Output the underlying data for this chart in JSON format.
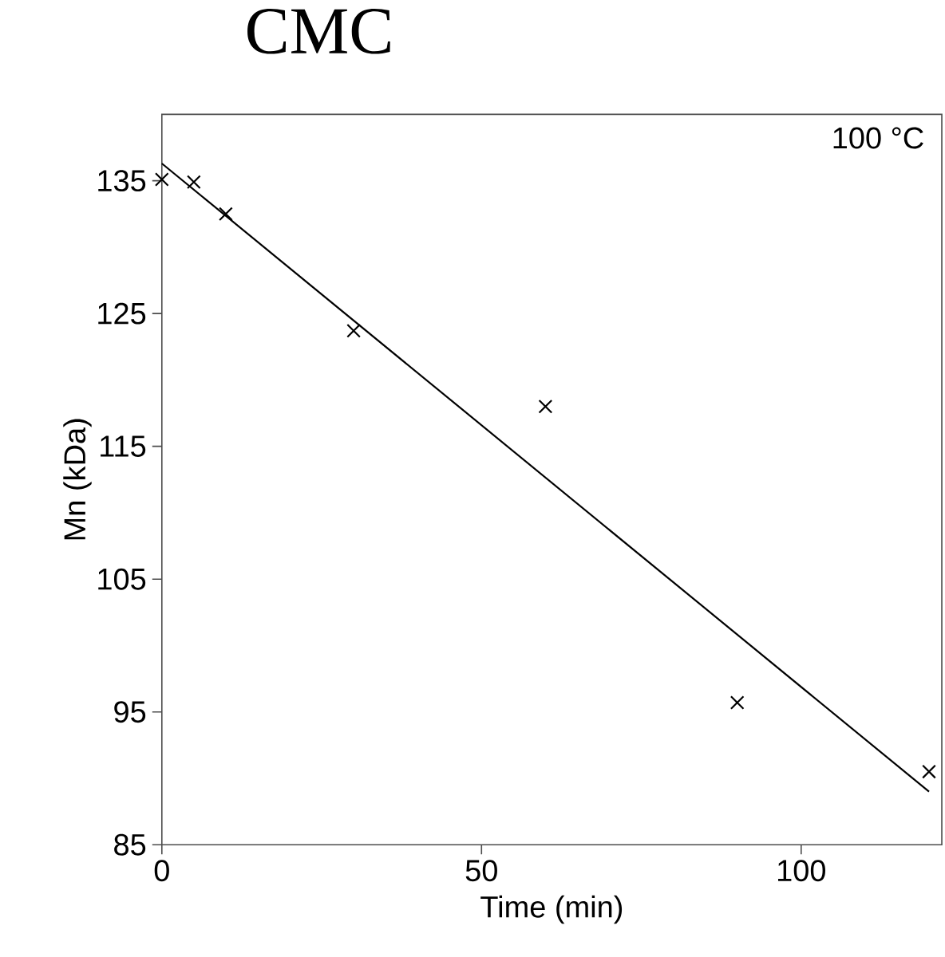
{
  "chart_data": {
    "type": "scatter",
    "title": "CMC",
    "xlabel": "Time (min)",
    "ylabel": "Mn (kDa)",
    "annotations": [
      "100 °C"
    ],
    "series": [
      {
        "color": "#000000",
        "x": [
          0,
          5,
          10,
          30,
          60,
          90,
          120
        ],
        "values": [
          135.1,
          134.9,
          132.5,
          123.7,
          118.0,
          95.7,
          90.5
        ]
      },
      {
        "type": "line",
        "marker": "none",
        "color": "#000000",
        "x": [
          0,
          120
        ],
        "values": [
          136.3,
          89.0
        ]
      }
    ],
    "marker": "cross",
    "xlim": [
      0,
      122
    ],
    "ylim": [
      85,
      140
    ],
    "xticks": [
      0,
      50,
      100
    ],
    "yticks": [
      85,
      95,
      105,
      115,
      125,
      135
    ],
    "grid": false
  }
}
